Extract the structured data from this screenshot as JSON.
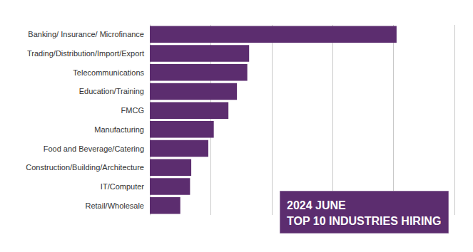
{
  "chart_data": {
    "type": "bar",
    "title": "2024 JUNE\nTOP 10 INDUSTRIES HIRING",
    "orientation": "horizontal",
    "categories": [
      "Banking/ Insurance/ Microfinance",
      "Trading/Distribution/Import/Export",
      "Telecommunications",
      "Education/Training",
      "FMCG",
      "Manufacturing",
      "Food and Beverage/Catering",
      "Construction/Building/Architecture",
      "IT/Computer",
      "Retail/Wholesale"
    ],
    "values": [
      4.05,
      1.63,
      1.6,
      1.43,
      1.29,
      1.05,
      0.96,
      0.68,
      0.66,
      0.5
    ],
    "color": "#5c2d6f",
    "xlim": [
      0,
      5
    ],
    "xticks": [
      0,
      1,
      2,
      3,
      4,
      5
    ],
    "grid": true,
    "tick_labels": "y"
  }
}
